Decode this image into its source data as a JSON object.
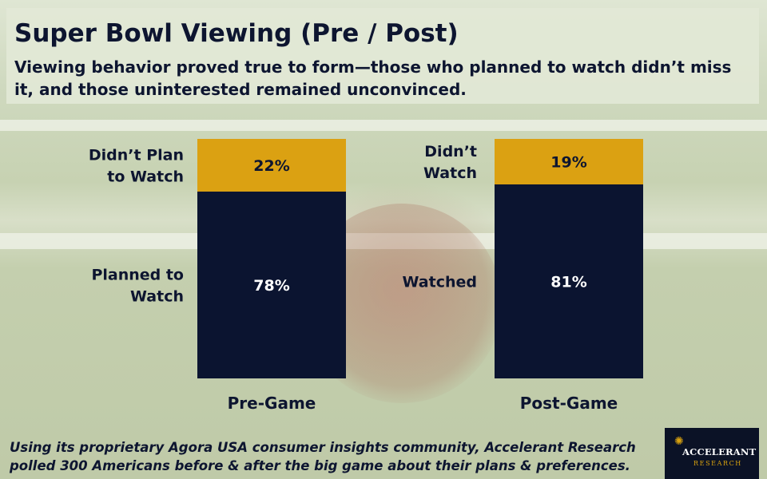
{
  "header": {
    "title": "Super Bowl Viewing (Pre / Post)",
    "subtitle": "Viewing behavior proved true to form—those who planned to watch didn’t miss it, and those uninterested remained unconvinced."
  },
  "colors": {
    "bottom_segment": "#0b1430",
    "top_segment": "#dba112",
    "text_dark": "#0d1530",
    "text_light": "#ffffff"
  },
  "chart_data": {
    "type": "bar",
    "stacked": true,
    "title": "Super Bowl Viewing (Pre / Post)",
    "ylim": [
      0,
      100
    ],
    "categories": [
      "Pre-Game",
      "Post-Game"
    ],
    "series": [
      {
        "name": "bottom",
        "values": [
          78,
          81
        ],
        "labels": [
          [
            "Planned to",
            "Watch"
          ],
          [
            "Watched"
          ]
        ],
        "value_labels": [
          "78%",
          "81%"
        ]
      },
      {
        "name": "top",
        "values": [
          22,
          19
        ],
        "labels": [
          [
            "Didn’t Plan",
            "to Watch"
          ],
          [
            "Didn’t",
            "Watch"
          ]
        ],
        "value_labels": [
          "22%",
          "19%"
        ]
      }
    ]
  },
  "footnote": "Using its proprietary Agora USA consumer insights community, Accelerant Research polled 300 Americans before & after the big game about their plans & preferences.",
  "logo": {
    "name": "ACCELERANT",
    "sub": "RESEARCH"
  }
}
